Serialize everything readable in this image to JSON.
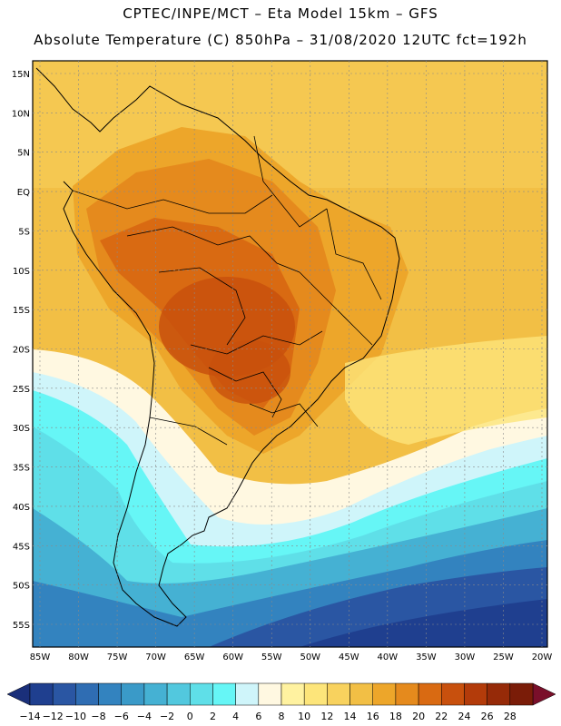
{
  "header": {
    "line1": "CPTEC/INPE/MCT –  Eta Model 15km – GFS",
    "line2": "Absolute Temperature (C) 850hPa – 31/08/2020 12UTC fct=192h"
  },
  "map": {
    "lat_labels": [
      "15N",
      "10N",
      "5N",
      "EQ",
      "5S",
      "10S",
      "15S",
      "20S",
      "25S",
      "30S",
      "35S",
      "40S",
      "45S",
      "50S",
      "55S"
    ],
    "lon_labels": [
      "85W",
      "80W",
      "75W",
      "70W",
      "65W",
      "60W",
      "55W",
      "50W",
      "45W",
      "40W",
      "35W",
      "30W",
      "25W",
      "20W"
    ],
    "lat_values": [
      15,
      10,
      5,
      0,
      -5,
      -10,
      -15,
      -20,
      -25,
      -30,
      -35,
      -40,
      -45,
      -50,
      -55
    ],
    "lon_values": [
      -85,
      -80,
      -75,
      -70,
      -65,
      -60,
      -55,
      -50,
      -45,
      -40,
      -35,
      -30,
      -25,
      -20
    ]
  },
  "colorbar": {
    "labels": [
      "-14",
      "-12",
      "-10",
      "-8",
      "-6",
      "-4",
      "-2",
      "0",
      "2",
      "4",
      "6",
      "8",
      "10",
      "12",
      "14",
      "16",
      "18",
      "20",
      "22",
      "24",
      "26",
      "28"
    ],
    "colors": [
      "#1f3f8f",
      "#2a56a3",
      "#2f6db3",
      "#3383bf",
      "#3a9ac8",
      "#45b1d3",
      "#52c8de",
      "#5fdfe8",
      "#66f6f6",
      "#cff5fa",
      "#fff8e1",
      "#fff2a0",
      "#fde57a",
      "#f8d25e",
      "#f2bf45",
      "#eda62a",
      "#e58a1d",
      "#d96a12",
      "#c8500d",
      "#b33b0a",
      "#962a08",
      "#7a1c08"
    ],
    "low_color": "#1a2f7a",
    "high_color": "#7a0f2a"
  }
}
